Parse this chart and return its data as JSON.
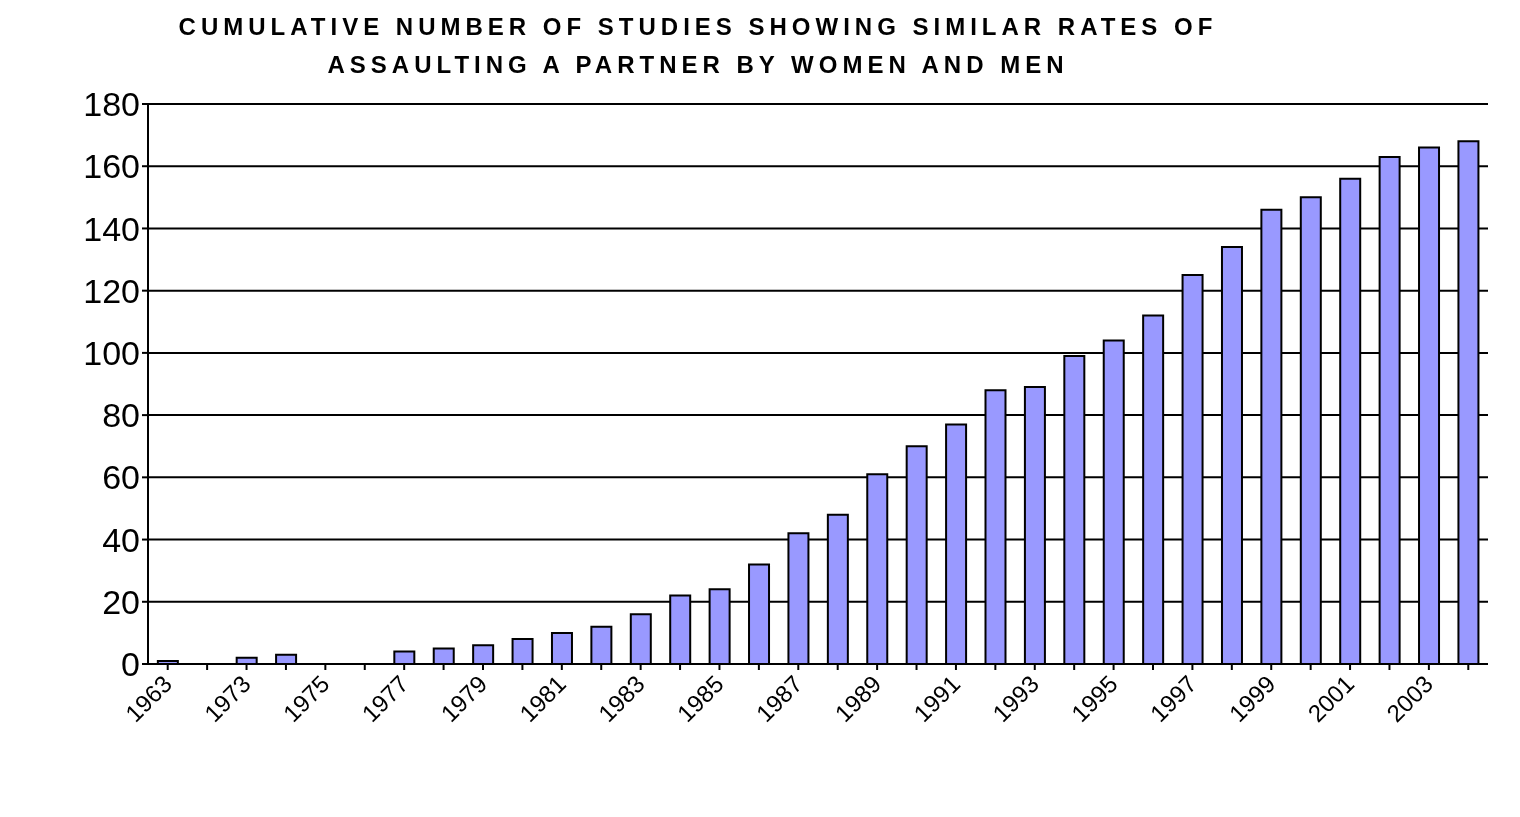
{
  "chart_data": {
    "type": "bar",
    "title": "CUMULATIVE NUMBER OF STUDIES SHOWING SIMILAR RATES OF ASSAULTING A PARTNER BY WOMEN AND MEN",
    "categories": [
      "1963",
      null,
      "1973",
      null,
      "1975",
      null,
      "1977",
      null,
      "1979",
      null,
      "1981",
      null,
      "1983",
      null,
      "1985",
      null,
      "1987",
      null,
      "1989",
      null,
      "1991",
      null,
      "1993",
      null,
      "1995",
      null,
      "1997",
      null,
      "1999",
      null,
      "2001",
      null,
      "2003",
      null
    ],
    "values": [
      1,
      0,
      2,
      3,
      0,
      0,
      4,
      5,
      6,
      8,
      10,
      12,
      16,
      22,
      24,
      32,
      42,
      48,
      61,
      70,
      77,
      88,
      89,
      99,
      104,
      112,
      125,
      134,
      146,
      150,
      156,
      163,
      166,
      168
    ],
    "color": "#9999ff",
    "ylim": [
      0,
      180
    ],
    "yticks": [
      0,
      20,
      40,
      60,
      80,
      100,
      120,
      140,
      160,
      180
    ],
    "grid": "y"
  }
}
